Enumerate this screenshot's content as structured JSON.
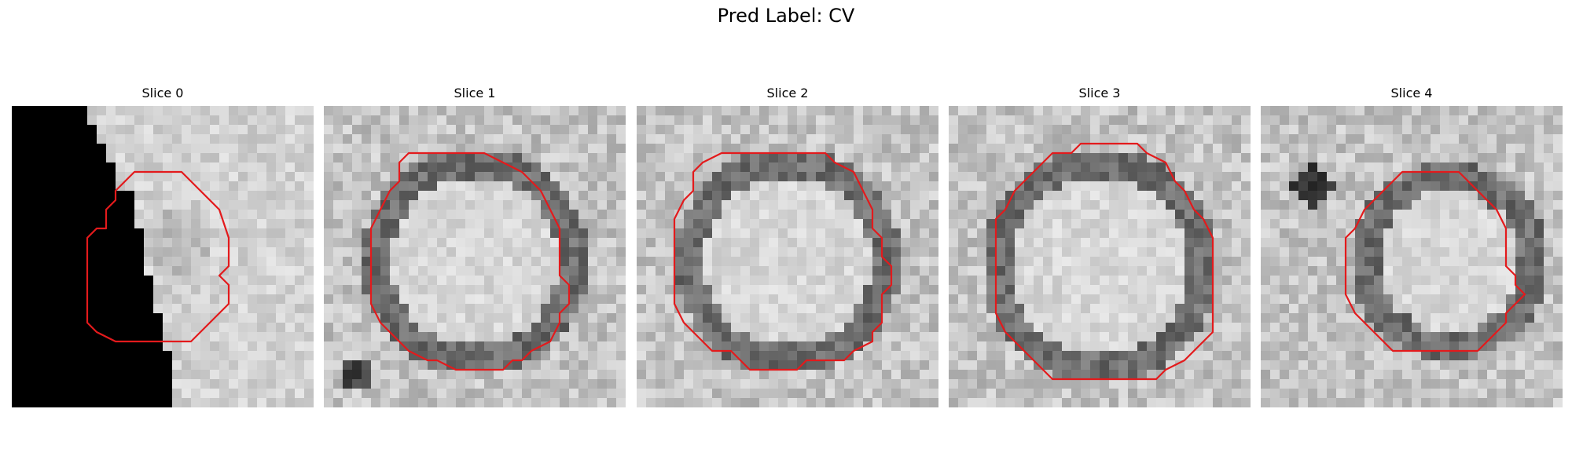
{
  "figure": {
    "suptitle": "Pred Label: CV"
  },
  "panels": [
    {
      "title": "Slice 0",
      "seed": 11,
      "variant": "mask"
    },
    {
      "title": "Slice 1",
      "seed": 23,
      "variant": "ring"
    },
    {
      "title": "Slice 2",
      "seed": 37,
      "variant": "ring"
    },
    {
      "title": "Slice 3",
      "seed": 41,
      "variant": "ring"
    },
    {
      "title": "Slice 4",
      "seed": 53,
      "variant": "ring-blob"
    }
  ],
  "colors": {
    "contour": "#e31a1c",
    "background": "#ffffff"
  },
  "chart_data": {
    "type": "heatmap",
    "title": "Pred Label: CV",
    "panels": [
      "Slice 0",
      "Slice 1",
      "Slice 2",
      "Slice 3",
      "Slice 4"
    ],
    "colormap": "gray",
    "overlay": "red contour"
  }
}
